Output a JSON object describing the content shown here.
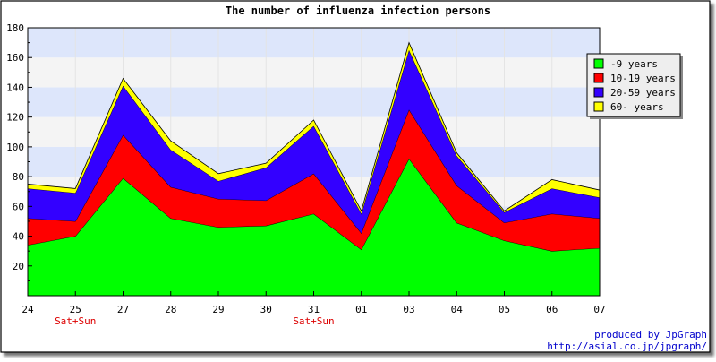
{
  "chart_data": {
    "type": "area",
    "stacked": true,
    "title": "The number of influenza infection persons",
    "xlabel": "",
    "ylabel": "",
    "categories": [
      "24",
      "25",
      "27",
      "28",
      "29",
      "30",
      "31",
      "01",
      "03",
      "04",
      "05",
      "06",
      "07"
    ],
    "category_notes": [
      "",
      "Sat+Sun",
      "",
      "",
      "",
      "",
      "Sat+Sun",
      "",
      "",
      "",
      "",
      "",
      ""
    ],
    "ylim": [
      0,
      180
    ],
    "yticks": [
      20,
      40,
      60,
      80,
      100,
      120,
      140,
      160,
      180
    ],
    "grid": "horizontal bands",
    "legend_position": "top-right",
    "series": [
      {
        "name": "-9 years",
        "color": "#00ff00",
        "values": [
          34,
          40,
          79,
          52,
          46,
          47,
          55,
          31,
          92,
          49,
          37,
          30,
          32
        ]
      },
      {
        "name": "10-19 years",
        "color": "#ff0000",
        "values": [
          18,
          10,
          29,
          21,
          19,
          17,
          27,
          11,
          33,
          25,
          12,
          25,
          20
        ]
      },
      {
        "name": "20-59 years",
        "color": "#3300ff",
        "values": [
          20,
          19,
          33,
          25,
          12,
          22,
          32,
          13,
          40,
          20,
          7,
          17,
          14
        ]
      },
      {
        "name": "60- years",
        "color": "#ffff00",
        "values": [
          3,
          3,
          5,
          6,
          5,
          3,
          4,
          2,
          5,
          2,
          1,
          6,
          5
        ]
      }
    ]
  },
  "credits": {
    "line1": "produced by JpGraph",
    "line2": "http://asial.co.jp/jpgraph/"
  },
  "colors": {
    "band_light": "#f4f4f4",
    "band_blue": "#dde6fb",
    "note_red": "#dd0000",
    "credit_blue": "#0000cc"
  }
}
